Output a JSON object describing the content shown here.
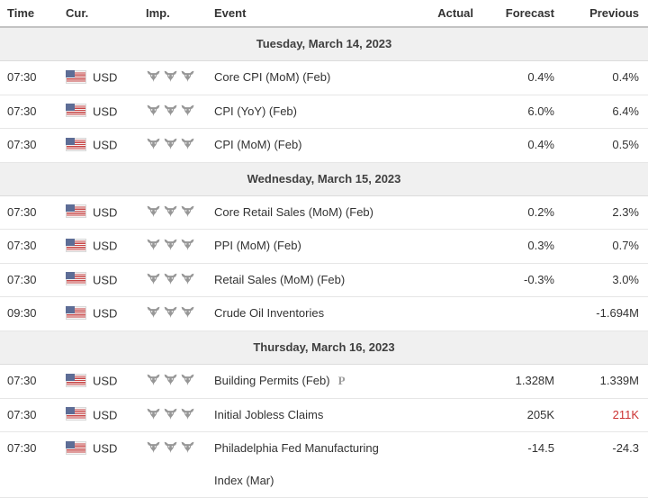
{
  "colors": {
    "negative_value": "#cc3333",
    "default_text": "#333333",
    "section_band_bg": "#f0f0f0",
    "bull_icon": "#979797",
    "flag_red": "#c94747",
    "flag_blue": "#5d6d96"
  },
  "table": {
    "headers": [
      "Time",
      "Cur.",
      "Imp.",
      "Event",
      "Actual",
      "Forecast",
      "Previous"
    ],
    "currency_flag": "us-flag-icon",
    "sections": [
      {
        "date": "Tuesday, March 14, 2023",
        "rows": [
          {
            "time": "07:30",
            "currency": "USD",
            "importance": 3,
            "event": "Core CPI (MoM) (Feb)",
            "actual": "",
            "forecast": "0.4%",
            "previous": "0.4%"
          },
          {
            "time": "07:30",
            "currency": "USD",
            "importance": 3,
            "event": "CPI (YoY) (Feb)",
            "actual": "",
            "forecast": "6.0%",
            "previous": "6.4%"
          },
          {
            "time": "07:30",
            "currency": "USD",
            "importance": 3,
            "event": "CPI (MoM) (Feb)",
            "actual": "",
            "forecast": "0.4%",
            "previous": "0.5%"
          }
        ]
      },
      {
        "date": "Wednesday, March 15, 2023",
        "rows": [
          {
            "time": "07:30",
            "currency": "USD",
            "importance": 3,
            "event": "Core Retail Sales (MoM) (Feb)",
            "actual": "",
            "forecast": "0.2%",
            "previous": "2.3%"
          },
          {
            "time": "07:30",
            "currency": "USD",
            "importance": 3,
            "event": "PPI (MoM) (Feb)",
            "actual": "",
            "forecast": "0.3%",
            "previous": "0.7%"
          },
          {
            "time": "07:30",
            "currency": "USD",
            "importance": 3,
            "event": "Retail Sales (MoM) (Feb)",
            "actual": "",
            "forecast": "-0.3%",
            "previous": "3.0%"
          },
          {
            "time": "09:30",
            "currency": "USD",
            "importance": 3,
            "event": "Crude Oil Inventories",
            "actual": "",
            "forecast": "",
            "previous": "-1.694M"
          }
        ]
      },
      {
        "date": "Thursday, March 16, 2023",
        "rows": [
          {
            "time": "07:30",
            "currency": "USD",
            "importance": 3,
            "event": "Building Permits (Feb)",
            "marker": "P",
            "actual": "",
            "forecast": "1.328M",
            "previous": "1.339M"
          },
          {
            "time": "07:30",
            "currency": "USD",
            "importance": 3,
            "event": "Initial Jobless Claims",
            "actual": "",
            "forecast": "205K",
            "previous": "211K",
            "previous_color": "#cc3333"
          },
          {
            "time": "07:30",
            "currency": "USD",
            "importance": 3,
            "event": "Philadelphia Fed Manufacturing Index (Mar)",
            "actual": "",
            "forecast": "-14.5",
            "previous": "-24.3"
          }
        ]
      }
    ]
  }
}
